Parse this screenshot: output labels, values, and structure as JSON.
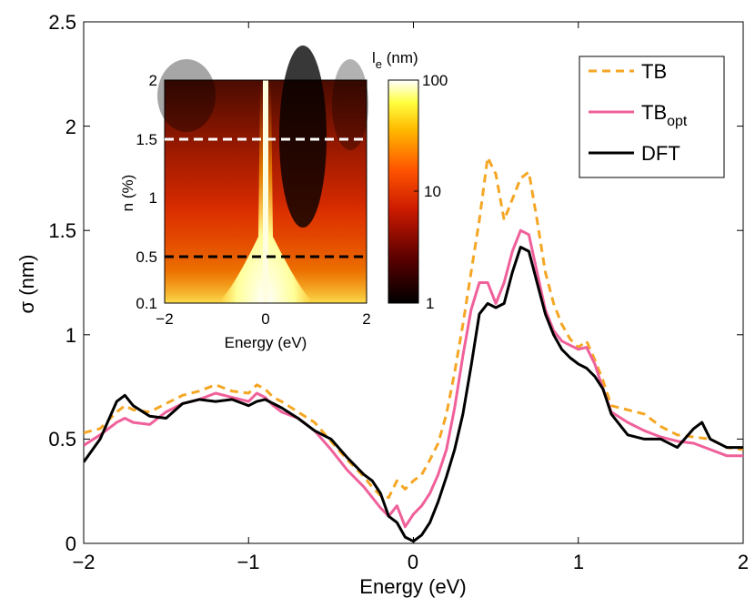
{
  "chart_data": [
    {
      "type": "line",
      "title": "",
      "xlabel": "Energy (eV)",
      "ylabel": "σ (nm)",
      "xlim": [
        -2,
        2
      ],
      "ylim": [
        0,
        2.5
      ],
      "xticks": [
        -2,
        -1,
        0,
        1,
        2
      ],
      "xtick_labels": [
        "−2",
        "−1",
        "0",
        "1",
        "2"
      ],
      "yticks": [
        0,
        0.5,
        1,
        1.5,
        2,
        2.5
      ],
      "ytick_labels": [
        "0",
        "0.5",
        "1",
        "1.5",
        "2",
        "2.5"
      ],
      "legend_position": "top-right",
      "series": [
        {
          "name": "TB",
          "name_base": "TB",
          "name_sub": "",
          "color": "#f5a623",
          "style": "dashed",
          "x": [
            -2.0,
            -1.9,
            -1.8,
            -1.75,
            -1.7,
            -1.6,
            -1.5,
            -1.4,
            -1.3,
            -1.2,
            -1.1,
            -1.0,
            -0.95,
            -0.9,
            -0.85,
            -0.8,
            -0.7,
            -0.6,
            -0.5,
            -0.4,
            -0.3,
            -0.25,
            -0.2,
            -0.15,
            -0.1,
            -0.05,
            0.0,
            0.05,
            0.1,
            0.15,
            0.2,
            0.25,
            0.3,
            0.35,
            0.4,
            0.45,
            0.5,
            0.55,
            0.6,
            0.65,
            0.7,
            0.75,
            0.8,
            0.85,
            0.9,
            0.95,
            1.0,
            1.05,
            1.1,
            1.15,
            1.2,
            1.3,
            1.4,
            1.5,
            1.6,
            1.7,
            1.8,
            1.9,
            2.0
          ],
          "y": [
            0.53,
            0.55,
            0.63,
            0.66,
            0.64,
            0.63,
            0.67,
            0.71,
            0.73,
            0.76,
            0.73,
            0.72,
            0.76,
            0.74,
            0.7,
            0.68,
            0.63,
            0.58,
            0.49,
            0.4,
            0.32,
            0.27,
            0.23,
            0.22,
            0.3,
            0.26,
            0.3,
            0.33,
            0.4,
            0.48,
            0.62,
            0.82,
            1.05,
            1.3,
            1.55,
            1.85,
            1.77,
            1.55,
            1.65,
            1.75,
            1.78,
            1.55,
            1.3,
            1.15,
            1.05,
            0.98,
            0.94,
            0.97,
            0.88,
            0.78,
            0.66,
            0.64,
            0.62,
            0.56,
            0.52,
            0.51,
            0.5,
            0.46,
            0.45
          ]
        },
        {
          "name": "TBopt",
          "name_base": "TB",
          "name_sub": "opt",
          "color": "#f0609a",
          "style": "solid",
          "x": [
            -2.0,
            -1.9,
            -1.8,
            -1.75,
            -1.7,
            -1.6,
            -1.5,
            -1.4,
            -1.3,
            -1.2,
            -1.1,
            -1.0,
            -0.95,
            -0.9,
            -0.85,
            -0.8,
            -0.7,
            -0.6,
            -0.5,
            -0.4,
            -0.3,
            -0.25,
            -0.2,
            -0.15,
            -0.1,
            -0.05,
            0.0,
            0.05,
            0.1,
            0.15,
            0.2,
            0.25,
            0.3,
            0.35,
            0.4,
            0.45,
            0.5,
            0.55,
            0.6,
            0.65,
            0.7,
            0.75,
            0.8,
            0.85,
            0.9,
            0.95,
            1.0,
            1.05,
            1.1,
            1.15,
            1.2,
            1.3,
            1.4,
            1.5,
            1.6,
            1.7,
            1.8,
            1.9,
            2.0
          ],
          "y": [
            0.47,
            0.52,
            0.58,
            0.6,
            0.58,
            0.57,
            0.63,
            0.67,
            0.69,
            0.72,
            0.7,
            0.68,
            0.72,
            0.7,
            0.66,
            0.63,
            0.6,
            0.54,
            0.45,
            0.35,
            0.27,
            0.22,
            0.17,
            0.13,
            0.18,
            0.08,
            0.14,
            0.18,
            0.24,
            0.33,
            0.45,
            0.65,
            0.9,
            1.12,
            1.25,
            1.25,
            1.15,
            1.25,
            1.4,
            1.5,
            1.48,
            1.3,
            1.12,
            1.02,
            0.97,
            0.95,
            0.93,
            0.94,
            0.86,
            0.74,
            0.63,
            0.58,
            0.54,
            0.51,
            0.49,
            0.48,
            0.45,
            0.42,
            0.42
          ]
        },
        {
          "name": "DFT",
          "name_base": "DFT",
          "name_sub": "",
          "color": "#000000",
          "style": "solid",
          "x": [
            -2.0,
            -1.9,
            -1.8,
            -1.75,
            -1.7,
            -1.6,
            -1.5,
            -1.4,
            -1.3,
            -1.2,
            -1.1,
            -1.0,
            -0.95,
            -0.9,
            -0.85,
            -0.8,
            -0.7,
            -0.6,
            -0.5,
            -0.4,
            -0.3,
            -0.25,
            -0.2,
            -0.15,
            -0.1,
            -0.05,
            0.0,
            0.05,
            0.1,
            0.15,
            0.2,
            0.25,
            0.3,
            0.35,
            0.4,
            0.45,
            0.5,
            0.55,
            0.6,
            0.65,
            0.7,
            0.75,
            0.8,
            0.85,
            0.9,
            0.95,
            1.0,
            1.05,
            1.1,
            1.15,
            1.2,
            1.3,
            1.4,
            1.5,
            1.6,
            1.7,
            1.75,
            1.8,
            1.9,
            2.0
          ],
          "y": [
            0.39,
            0.5,
            0.68,
            0.71,
            0.66,
            0.61,
            0.6,
            0.67,
            0.69,
            0.68,
            0.69,
            0.66,
            0.68,
            0.69,
            0.67,
            0.65,
            0.6,
            0.54,
            0.5,
            0.41,
            0.33,
            0.3,
            0.24,
            0.13,
            0.1,
            0.03,
            0.01,
            0.04,
            0.1,
            0.2,
            0.32,
            0.45,
            0.62,
            0.85,
            1.1,
            1.15,
            1.13,
            1.15,
            1.3,
            1.42,
            1.4,
            1.25,
            1.1,
            1.0,
            0.93,
            0.89,
            0.86,
            0.84,
            0.8,
            0.74,
            0.62,
            0.52,
            0.5,
            0.5,
            0.46,
            0.55,
            0.58,
            0.5,
            0.46,
            0.46
          ]
        }
      ]
    },
    {
      "type": "heatmap",
      "title": "",
      "xlabel": "Energy (eV)",
      "ylabel": "n (%)",
      "xlim": [
        -2,
        2
      ],
      "ylim": [
        0.1,
        2
      ],
      "xtick_labels": [
        "−2",
        "0",
        "2"
      ],
      "ytick_labels": [
        "0.1",
        "0.5",
        "1",
        "1.5",
        "2"
      ],
      "colorbar": {
        "label_base": "l",
        "label_sub": "e",
        "label_unit": " (nm)",
        "scale": "log",
        "range": [
          1,
          100
        ],
        "tick_labels": [
          "1",
          "10",
          "100"
        ]
      },
      "reference_lines": [
        {
          "n": 1.5,
          "color": "#ffffff",
          "style": "dashed"
        },
        {
          "n": 0.5,
          "color": "#000000",
          "style": "dashed"
        }
      ]
    }
  ]
}
